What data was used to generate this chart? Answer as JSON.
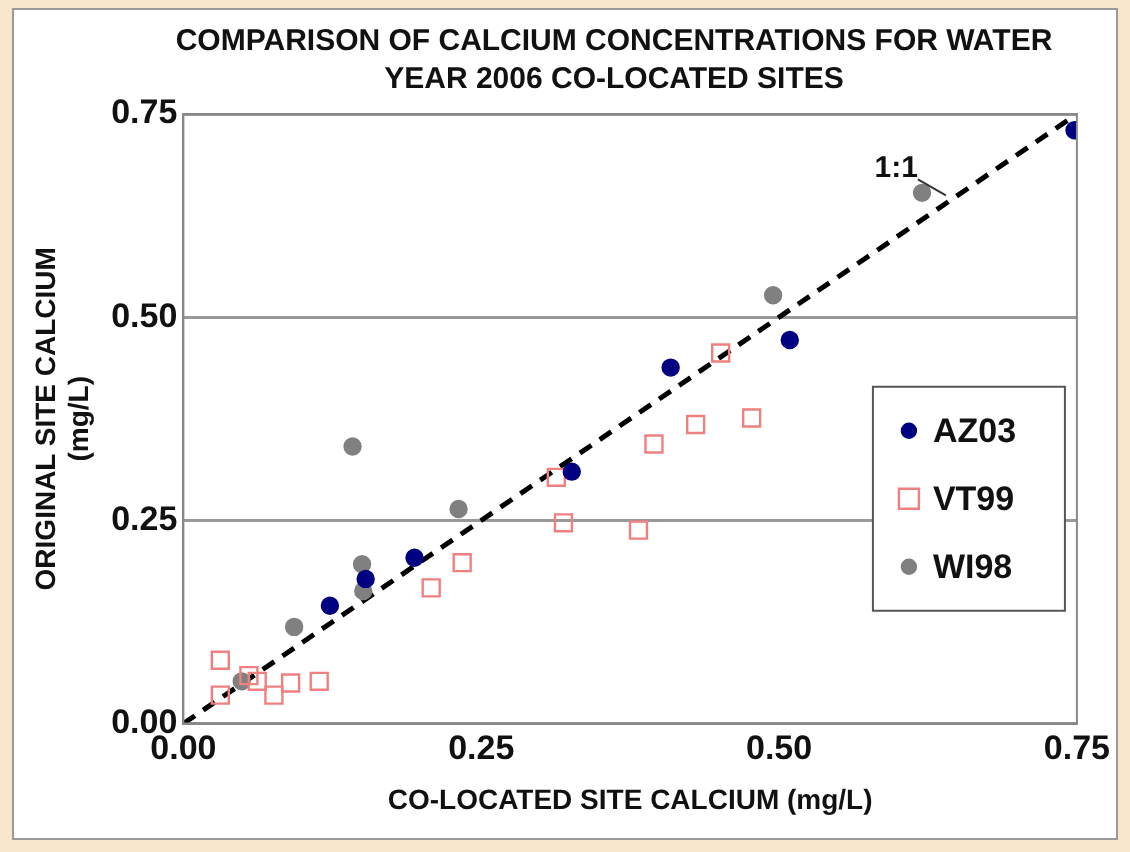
{
  "chart_data": {
    "type": "scatter",
    "title": "COMPARISON OF CALCIUM CONCENTRATIONS FOR WATER YEAR 2006 CO-LOCATED SITES",
    "xlabel": "CO-LOCATED SITE CALCIUM (mg/L)",
    "ylabel": "ORIGINAL SITE CALCIUM (mg/L)",
    "xlim": [
      0,
      0.75
    ],
    "ylim": [
      0,
      0.75
    ],
    "xticks": [
      {
        "value": 0,
        "label": "0.00"
      },
      {
        "value": 0.25,
        "label": "0.25"
      },
      {
        "value": 0.5,
        "label": "0.50"
      },
      {
        "value": 0.75,
        "label": "0.75"
      }
    ],
    "yticks": [
      {
        "value": 0,
        "label": "0.00"
      },
      {
        "value": 0.25,
        "label": "0.25"
      },
      {
        "value": 0.5,
        "label": "0.50"
      },
      {
        "value": 0.75,
        "label": "0.75"
      }
    ],
    "grid": "y",
    "legend": "right",
    "annotations": [
      {
        "text": "1:1",
        "x": 0.64,
        "y": 0.65
      }
    ],
    "series": [
      {
        "name": "AZ03",
        "color": "#000080",
        "marker": "circle",
        "x": [
          0.123,
          0.153,
          0.194,
          0.326,
          0.409,
          0.509,
          0.748
        ],
        "values": [
          0.145,
          0.178,
          0.204,
          0.31,
          0.438,
          0.472,
          0.73
        ]
      },
      {
        "name": "VT99",
        "color": "#f08080",
        "marker": "square",
        "x": [
          0.031,
          0.031,
          0.055,
          0.062,
          0.076,
          0.09,
          0.114,
          0.208,
          0.234,
          0.313,
          0.319,
          0.382,
          0.395,
          0.43,
          0.477,
          0.451
        ],
        "values": [
          0.078,
          0.035,
          0.059,
          0.052,
          0.035,
          0.05,
          0.052,
          0.167,
          0.198,
          0.303,
          0.247,
          0.238,
          0.344,
          0.368,
          0.376,
          0.456
        ]
      },
      {
        "name": "WI98",
        "color": "#808080",
        "marker": "circle",
        "x": [
          0.142,
          0.231,
          0.15,
          0.151,
          0.093,
          0.049,
          0.495,
          0.62
        ],
        "values": [
          0.341,
          0.264,
          0.196,
          0.163,
          0.119,
          0.052,
          0.527,
          0.653
        ]
      },
      {
        "type": "line",
        "color": "#000000",
        "line_style": "dashed",
        "marker": "none",
        "x": [
          0,
          0.75
        ],
        "values": [
          0,
          0.75
        ]
      }
    ]
  }
}
